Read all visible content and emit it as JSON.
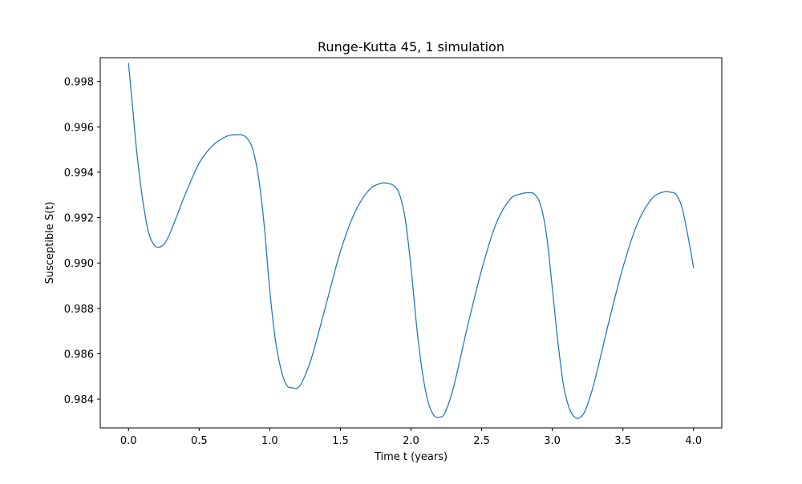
{
  "chart_data": {
    "type": "line",
    "title": "Runge-Kutta 45, 1 simulation",
    "xlabel": "Time t (years)",
    "ylabel": "Susceptible S(t)",
    "xlim": [
      -0.2,
      4.2
    ],
    "ylim": [
      0.98273,
      0.99905
    ],
    "xticks": [
      0.0,
      0.5,
      1.0,
      1.5,
      2.0,
      2.5,
      3.0,
      3.5,
      4.0
    ],
    "xtick_labels": [
      "0.0",
      "0.5",
      "1.0",
      "1.5",
      "2.0",
      "2.5",
      "3.0",
      "3.5",
      "4.0"
    ],
    "yticks": [
      0.984,
      0.986,
      0.988,
      0.99,
      0.992,
      0.994,
      0.996,
      0.998
    ],
    "ytick_labels": [
      "0.984",
      "0.986",
      "0.988",
      "0.990",
      "0.992",
      "0.994",
      "0.996",
      "0.998"
    ],
    "grid": false,
    "line_color": "#1f77b4",
    "series": [
      {
        "x": [
          0.0,
          0.03,
          0.06,
          0.1,
          0.14,
          0.18,
          0.22,
          0.26,
          0.3,
          0.35,
          0.4,
          0.5,
          0.6,
          0.7,
          0.76,
          0.8,
          0.84,
          0.88,
          0.92,
          0.96,
          1.0,
          1.04,
          1.08,
          1.12,
          1.16,
          1.2,
          1.24,
          1.3,
          1.4,
          1.5,
          1.6,
          1.7,
          1.78,
          1.83,
          1.88,
          1.92,
          1.96,
          2.0,
          2.04,
          2.08,
          2.12,
          2.16,
          2.2,
          2.24,
          2.3,
          2.4,
          2.5,
          2.6,
          2.7,
          2.78,
          2.84,
          2.88,
          2.92,
          2.96,
          3.0,
          3.04,
          3.08,
          3.12,
          3.16,
          3.2,
          3.24,
          3.3,
          3.4,
          3.5,
          3.6,
          3.7,
          3.78,
          3.84,
          3.88,
          3.92,
          3.96,
          4.0
        ],
        "y": [
          0.9988,
          0.9968,
          0.9948,
          0.9928,
          0.9914,
          0.9908,
          0.9907,
          0.9909,
          0.9914,
          0.9922,
          0.993,
          0.9944,
          0.9952,
          0.9956,
          0.99565,
          0.99565,
          0.9955,
          0.995,
          0.9938,
          0.9917,
          0.9888,
          0.9866,
          0.9853,
          0.9846,
          0.9845,
          0.9845,
          0.9849,
          0.9859,
          0.9882,
          0.9905,
          0.9922,
          0.9932,
          0.9935,
          0.99352,
          0.9934,
          0.993,
          0.9919,
          0.9898,
          0.9872,
          0.9852,
          0.9839,
          0.9833,
          0.9832,
          0.9834,
          0.9845,
          0.9872,
          0.9897,
          0.9917,
          0.9928,
          0.99305,
          0.9931,
          0.993,
          0.9925,
          0.9912,
          0.9889,
          0.9865,
          0.9846,
          0.9836,
          0.9832,
          0.9832,
          0.9836,
          0.9848,
          0.9874,
          0.9898,
          0.9917,
          0.9928,
          0.99312,
          0.99312,
          0.993,
          0.9924,
          0.9912,
          0.9898
        ]
      }
    ]
  }
}
